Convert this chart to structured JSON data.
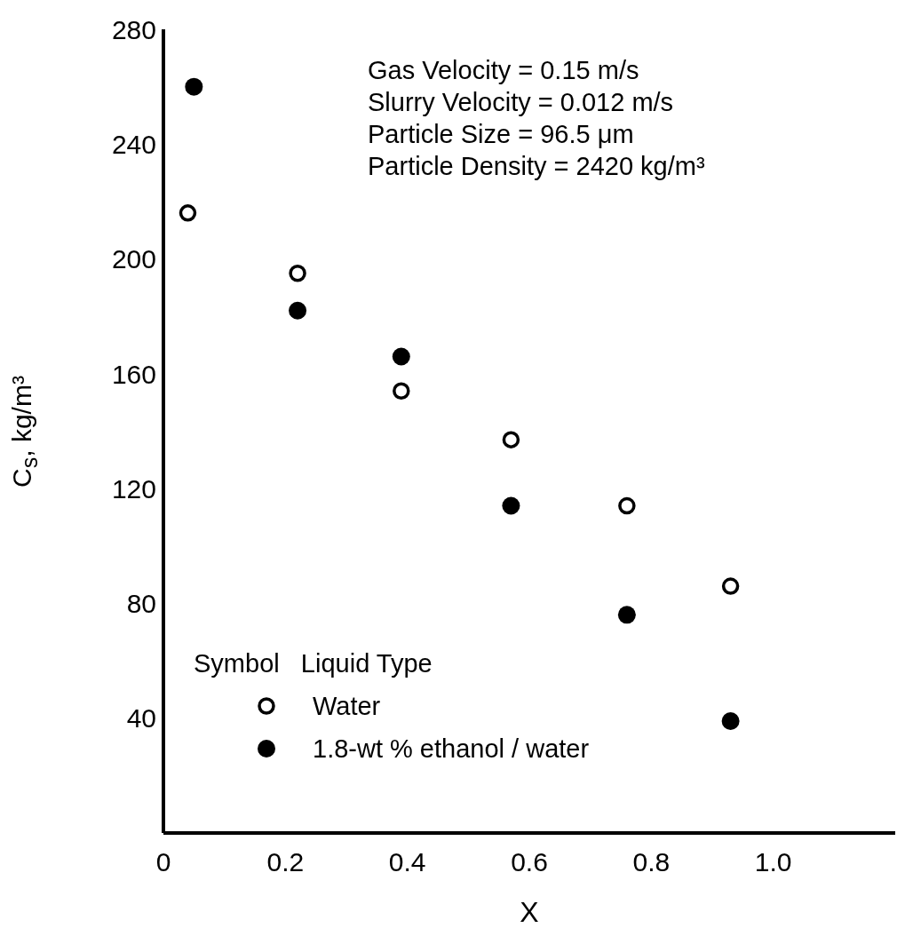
{
  "chart_data": {
    "type": "scatter",
    "xlabel": "X",
    "ylabel": "C$_{s}$, kg/m³",
    "legend_title": "Symbol   Liquid Type",
    "annotations": [
      "Gas Velocity = 0.15 m/s",
      "Slurry Velocity = 0.012 m/s",
      "Particle Size = 96.5 μm",
      "Particle Density = 2420 kg/m³"
    ],
    "series": [
      {
        "name": "Water",
        "color": "#000000",
        "x": [
          0.04,
          0.22,
          0.39,
          0.57,
          0.76,
          0.93
        ],
        "values": [
          216,
          195,
          154,
          137,
          114,
          86
        ]
      },
      {
        "name": "1.8-wt % ethanol / water",
        "color": "#000000",
        "x": [
          0.05,
          0.22,
          0.39,
          0.57,
          0.76,
          0.93
        ],
        "values": [
          260,
          182,
          166,
          114,
          76,
          39
        ]
      }
    ],
    "xlim": [
      0,
      1.2
    ],
    "xticks": [
      0,
      0.2,
      0.4,
      0.6,
      0.8,
      {
        "value": 1.0,
        "label": "1.0"
      }
    ],
    "ylim": [
      0,
      280
    ],
    "yticks": [
      40,
      80,
      120,
      160,
      200,
      240,
      280
    ],
    "marker": "circle",
    "legend": "bottom left",
    "grid": false
  }
}
